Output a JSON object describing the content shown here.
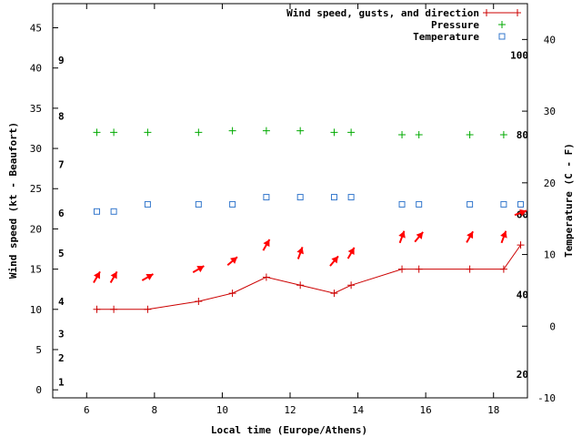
{
  "chart_data": {
    "type": "line",
    "xlabel": "Local time (Europe/Athens)",
    "ylabel": "Wind speed (kt - Beaufort)",
    "y2label": "Temperature (C - F)",
    "xlim": [
      5,
      19
    ],
    "ylim": [
      -1,
      48
    ],
    "y2lim": [
      -10,
      45
    ],
    "x_ticks": [
      6,
      8,
      10,
      12,
      14,
      16,
      18
    ],
    "y_ticks": [
      0,
      5,
      10,
      15,
      20,
      25,
      30,
      35,
      40,
      45
    ],
    "y2_ticks": [
      -10,
      0,
      10,
      20,
      30,
      40
    ],
    "fahrenheit_labels": [
      {
        "label": "20",
        "celsius": -6.7
      },
      {
        "label": "40",
        "celsius": 4.4
      },
      {
        "label": "60",
        "celsius": 15.6
      },
      {
        "label": "80",
        "celsius": 26.7
      },
      {
        "label": "100",
        "celsius": 37.8
      }
    ],
    "beaufort_labels": [
      {
        "label": "1",
        "kt": 1
      },
      {
        "label": "2",
        "kt": 4
      },
      {
        "label": "3",
        "kt": 7
      },
      {
        "label": "4",
        "kt": 11
      },
      {
        "label": "5",
        "kt": 17
      },
      {
        "label": "6",
        "kt": 22
      },
      {
        "label": "7",
        "kt": 28
      },
      {
        "label": "8",
        "kt": 34
      },
      {
        "label": "9",
        "kt": 41
      }
    ],
    "series": [
      {
        "name": "Wind speed, gusts, and direction",
        "color": "#cc0000",
        "kind": "line",
        "axis": "y",
        "x": [
          6.3,
          6.8,
          7.8,
          9.3,
          10.3,
          11.3,
          12.3,
          13.3,
          13.8,
          15.3,
          15.8,
          17.3,
          18.3,
          18.8
        ],
        "values": [
          10,
          10,
          10,
          11,
          12,
          14,
          13,
          12,
          13,
          15,
          15,
          15,
          15,
          18
        ]
      },
      {
        "name": "Pressure",
        "color": "#00aa00",
        "kind": "points",
        "axis": "y",
        "x": [
          6.3,
          6.8,
          7.8,
          9.3,
          10.3,
          11.3,
          12.3,
          13.3,
          13.8,
          15.3,
          15.8,
          17.3,
          18.3
        ],
        "values": [
          32,
          32,
          32,
          32,
          32.2,
          32.2,
          32.2,
          32,
          32,
          31.7,
          31.7,
          31.7,
          31.7
        ]
      },
      {
        "name": "Temperature",
        "color": "#3377cc",
        "kind": "points",
        "axis": "y2",
        "x": [
          6.3,
          6.8,
          7.8,
          9.3,
          10.3,
          11.3,
          12.3,
          13.3,
          13.8,
          15.3,
          15.8,
          17.3,
          18.3,
          18.8
        ],
        "values": [
          16,
          16,
          17,
          17,
          17,
          18,
          18,
          18,
          18,
          17,
          17,
          17,
          17,
          17
        ]
      }
    ],
    "wind_arrows": {
      "color": "#ff0000",
      "x": [
        6.3,
        6.8,
        7.8,
        9.3,
        10.3,
        11.3,
        12.3,
        13.3,
        13.8,
        15.3,
        15.8,
        17.3,
        18.3,
        18.8
      ],
      "y": [
        14,
        14,
        14,
        15,
        16,
        18,
        17,
        16,
        17,
        19,
        19,
        19,
        19,
        22
      ],
      "direction_deg": [
        210,
        210,
        240,
        240,
        230,
        210,
        200,
        220,
        210,
        200,
        220,
        210,
        200,
        250
      ]
    }
  }
}
